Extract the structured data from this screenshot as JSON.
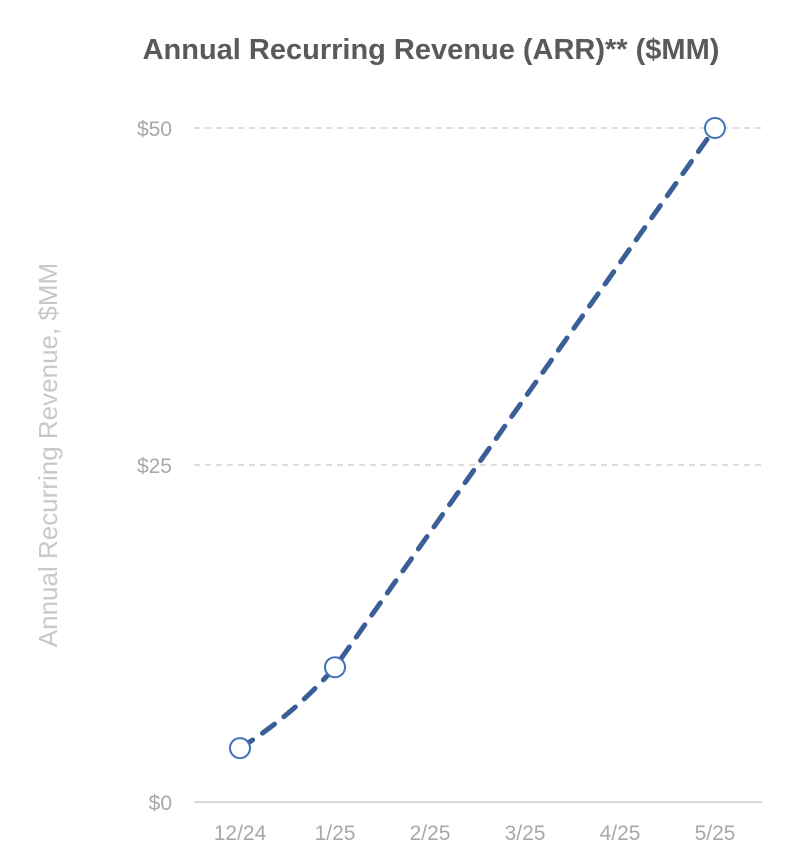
{
  "chart_data": {
    "type": "line",
    "title": "Annual Recurring Revenue (ARR)** ($MM)",
    "xlabel": "",
    "ylabel": "Annual Recurring Revenue, $MM",
    "categories": [
      "12/24",
      "1/25",
      "2/25",
      "3/25",
      "4/25",
      "5/25"
    ],
    "series": [
      {
        "x": [
          "12/24",
          "1/25",
          "5/25"
        ],
        "values": [
          4,
          10,
          50
        ],
        "line_style": "dashed",
        "marker": "hollow-circle"
      }
    ],
    "ylim": [
      0,
      50
    ],
    "yticks": [
      {
        "value": 0,
        "label": "$0"
      },
      {
        "value": 25,
        "label": "$25"
      },
      {
        "value": 50,
        "label": "$50"
      }
    ],
    "grid": true,
    "legend": "none",
    "colors": {
      "line": "#3a5f96",
      "marker_stroke": "#3f72b8",
      "grid": "#d4d4d4",
      "axis": "#d9d9d9",
      "tick_text": "#a8a8a8",
      "title_text": "#5a5a5a"
    }
  }
}
